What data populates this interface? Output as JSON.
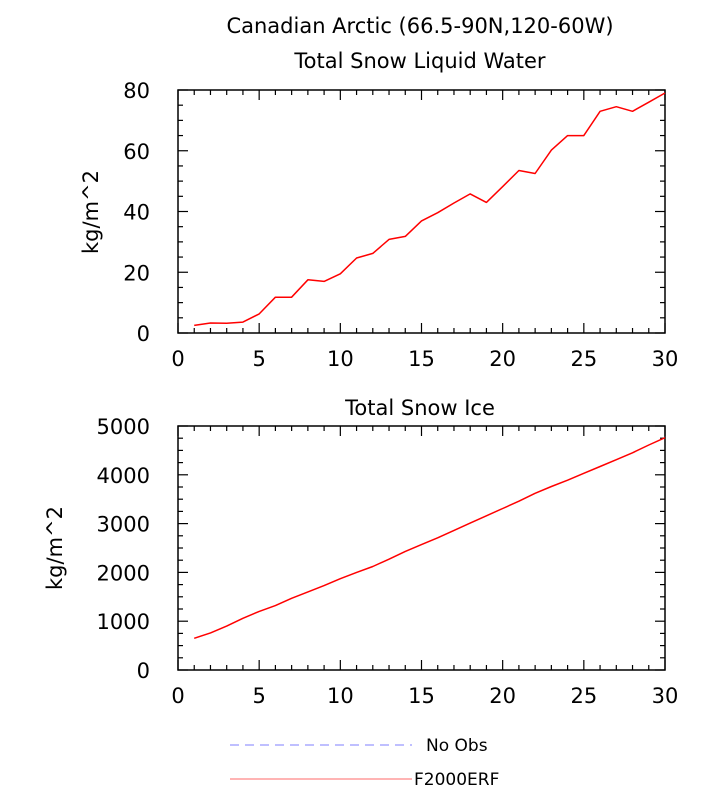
{
  "figure": {
    "title": "Canadian Arctic (66.5-90N,120-60W)"
  },
  "chart_data": [
    {
      "type": "line",
      "title": "Total Snow Liquid Water",
      "ylabel": "kg/m^2",
      "xlabel": "",
      "xlim": [
        0,
        30
      ],
      "ylim": [
        0,
        80
      ],
      "xticks": [
        0,
        5,
        10,
        15,
        20,
        25,
        30
      ],
      "yticks": [
        0,
        20,
        40,
        60,
        80
      ],
      "series": [
        {
          "name": "F2000ERF",
          "color": "#ff0000",
          "x": [
            1,
            2,
            3,
            4,
            5,
            6,
            7,
            8,
            9,
            10,
            11,
            12,
            13,
            14,
            15,
            16,
            17,
            18,
            19,
            20,
            21,
            22,
            23,
            24,
            25,
            26,
            27,
            28,
            29,
            30
          ],
          "y": [
            2.5,
            3.3,
            3.2,
            3.6,
            6.3,
            11.8,
            11.8,
            17.5,
            17.0,
            19.5,
            24.7,
            26.2,
            30.8,
            31.8,
            36.9,
            39.6,
            42.8,
            45.8,
            43.0,
            48.2,
            53.5,
            52.5,
            60.2,
            65.0,
            65.0,
            73.0,
            74.5,
            73.0,
            76.0,
            79.0
          ]
        }
      ]
    },
    {
      "type": "line",
      "title": "Total Snow Ice",
      "ylabel": "kg/m^2",
      "xlabel": "",
      "xlim": [
        0,
        30
      ],
      "ylim": [
        0,
        5000
      ],
      "xticks": [
        0,
        5,
        10,
        15,
        20,
        25,
        30
      ],
      "yticks": [
        0,
        1000,
        2000,
        3000,
        4000,
        5000
      ],
      "series": [
        {
          "name": "F2000ERF",
          "color": "#ff0000",
          "x": [
            1,
            2,
            3,
            4,
            5,
            6,
            7,
            8,
            9,
            10,
            11,
            12,
            13,
            14,
            15,
            16,
            17,
            18,
            19,
            20,
            21,
            22,
            23,
            24,
            25,
            26,
            27,
            28,
            29,
            30
          ],
          "y": [
            650,
            760,
            900,
            1060,
            1200,
            1320,
            1470,
            1600,
            1730,
            1870,
            2000,
            2120,
            2270,
            2430,
            2570,
            2710,
            2860,
            3010,
            3160,
            3310,
            3460,
            3620,
            3760,
            3890,
            4030,
            4170,
            4310,
            4450,
            4610,
            4760
          ]
        }
      ]
    }
  ],
  "legend": {
    "items": [
      {
        "label": "No Obs",
        "color": "#9999ff",
        "dashed": true
      },
      {
        "label": "F2000ERF",
        "color": "#ff8888",
        "dashed": false
      }
    ]
  }
}
